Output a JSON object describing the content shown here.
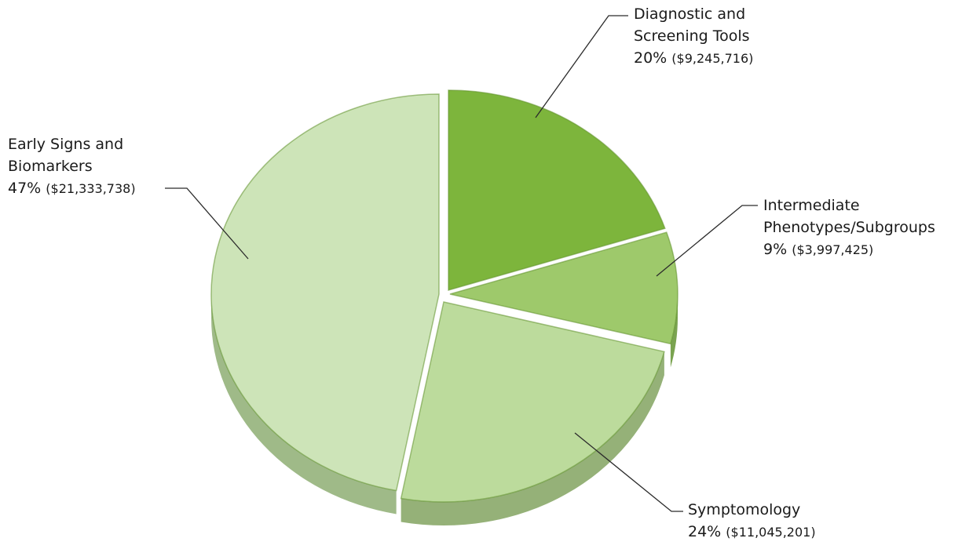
{
  "chart_data": {
    "type": "pie",
    "title": "",
    "colors": {
      "Diagnostic and Screening Tools": "#7db53c",
      "Intermediate Phenotypes/Subgroups": "#9ec96b",
      "Symptomology": "#bcdb9c",
      "Early Signs and Biomarkers": "#cde4b8"
    },
    "slices": [
      {
        "label_line1": "Diagnostic and",
        "label_line2": "Screening Tools",
        "percent_text": "20%",
        "amount_text": "($9,245,716)",
        "percent": 20,
        "amount": 9245716
      },
      {
        "label_line1": "Intermediate",
        "label_line2": "Phenotypes/Subgroups",
        "percent_text": "9%",
        "amount_text": "($3,997,425)",
        "percent": 9,
        "amount": 3997425
      },
      {
        "label_line1": "Symptomology",
        "label_line2": "",
        "percent_text": "24%",
        "amount_text": "($11,045,201)",
        "percent": 24,
        "amount": 11045201
      },
      {
        "label_line1": "Early Signs and",
        "label_line2": "Biomarkers",
        "percent_text": "47%",
        "amount_text": "($21,333,738)",
        "percent": 47,
        "amount": 21333738
      }
    ]
  }
}
